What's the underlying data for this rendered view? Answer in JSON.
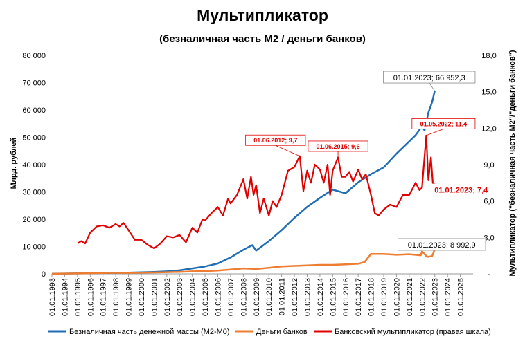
{
  "chart_data": {
    "type": "line",
    "title": "Мультипликатор",
    "subtitle": "(безналичная часть М2 / деньги банков)",
    "ylabel": "Млрд. рублей",
    "y2label": "Мультипликатор (\"безналичная часть М2\"/\"деньги банков\")",
    "ylim": [
      0,
      80000
    ],
    "y2lim": [
      0,
      18
    ],
    "xlim": [
      1993,
      2026
    ],
    "y_ticks": [
      "0",
      "10 000",
      "20 000",
      "30 000",
      "40 000",
      "50 000",
      "60 000",
      "70 000",
      "80 000"
    ],
    "y2_ticks": [
      "-",
      "3,0",
      "6,0",
      "9,0",
      "12,0",
      "15,0",
      "18,0"
    ],
    "x_ticks": [
      "01.01.1993",
      "01.01.1994",
      "01.01.1995",
      "01.01.1996",
      "01.01.1997",
      "01.01.1998",
      "01.01.1999",
      "01.01.2000",
      "01.01.2001",
      "01.01.2002",
      "01.01.2003",
      "01.01.2004",
      "01.01.2005",
      "01.01.2006",
      "01.01.2007",
      "01.01.2008",
      "01.01.2009",
      "01.01.2010",
      "01.01.2011",
      "01.01.2012",
      "01.01.2013",
      "01.01.2014",
      "01.01.2015",
      "01.01.2016",
      "01.01.2017",
      "01.01.2018",
      "01.01.2019",
      "01.01.2020",
      "01.01.2021",
      "01.01.2022",
      "01.01.2023",
      "01.01.2024",
      "01.01.2025"
    ],
    "series": [
      {
        "name": "Безналичная часть денежной массы (М2-М0)",
        "color": "#1f6eb4",
        "axis": "left",
        "x": [
          1993,
          1994,
          1995,
          1996,
          1997,
          1998,
          1999,
          2000,
          2001,
          2002,
          2003,
          2004,
          2005,
          2006,
          2007,
          2008,
          2008.7,
          2009,
          2010,
          2011,
          2012,
          2013,
          2014,
          2015,
          2016,
          2017,
          2018,
          2019,
          2020,
          2021,
          2021.5,
          2022,
          2022.2,
          2022.5,
          2022.8,
          2023
        ],
        "y": [
          50,
          100,
          150,
          200,
          300,
          400,
          450,
          550,
          700,
          900,
          1300,
          2000,
          2700,
          3800,
          6000,
          8800,
          10500,
          8500,
          12000,
          16000,
          20500,
          24500,
          27800,
          30800,
          29500,
          33500,
          36500,
          39000,
          44000,
          48500,
          50800,
          54000,
          52500,
          59000,
          63000,
          66952.3
        ]
      },
      {
        "name": "Деньги банков",
        "color": "#ed7d31",
        "axis": "left",
        "x": [
          1993,
          1995,
          1997,
          1998,
          1999,
          2000,
          2001,
          2002,
          2003,
          2004,
          2005,
          2006,
          2007,
          2008,
          2009,
          2010,
          2011,
          2012,
          2013,
          2014,
          2015,
          2016,
          2017,
          2017.5,
          2018,
          2019,
          2020,
          2021,
          2021.9,
          2022,
          2022.4,
          2022.8,
          2023
        ],
        "y": [
          20,
          150,
          300,
          400,
          350,
          450,
          500,
          600,
          700,
          900,
          1000,
          1200,
          1600,
          2000,
          1800,
          2200,
          2700,
          2900,
          3100,
          3300,
          3300,
          3500,
          3700,
          4300,
          7300,
          7300,
          7000,
          7200,
          6800,
          8200,
          6200,
          6500,
          8992.9
        ]
      },
      {
        "name": "Банковский мультипликатор (правая шкала)",
        "color": "#e00000",
        "axis": "right",
        "x": [
          1995,
          1995.3,
          1995.6,
          1996,
          1996.5,
          1997,
          1997.5,
          1998,
          1998.3,
          1998.6,
          1999,
          1999.5,
          2000,
          2000.5,
          2001,
          2001.5,
          2002,
          2002.5,
          2003,
          2003.5,
          2004,
          2004.4,
          2004.8,
          2005,
          2005.5,
          2006,
          2006.4,
          2006.8,
          2007,
          2007.5,
          2008,
          2008.3,
          2008.6,
          2008.8,
          2009,
          2009.3,
          2009.6,
          2010,
          2010.3,
          2010.6,
          2011,
          2011.5,
          2012,
          2012.42,
          2012.7,
          2013,
          2013.3,
          2013.6,
          2014,
          2014.3,
          2014.6,
          2014.8,
          2015,
          2015.42,
          2015.7,
          2016,
          2016.3,
          2016.6,
          2017,
          2017.3,
          2017.6,
          2018,
          2018.3,
          2018.6,
          2019,
          2019.5,
          2020,
          2020.5,
          2021,
          2021.5,
          2021.8,
          2022,
          2022.33,
          2022.5,
          2022.7,
          2022.85,
          2023
        ],
        "y": [
          2.5,
          2.7,
          2.5,
          3.4,
          3.9,
          4.0,
          3.8,
          4.1,
          3.9,
          4.2,
          3.6,
          2.8,
          2.8,
          2.4,
          2.1,
          2.5,
          3.1,
          3.0,
          3.2,
          2.6,
          3.8,
          3.4,
          4.5,
          4.4,
          5.0,
          5.5,
          4.8,
          6.2,
          5.8,
          6.5,
          7.8,
          6.2,
          8.0,
          6.5,
          7.3,
          5.0,
          6.2,
          4.8,
          6.0,
          5.5,
          6.5,
          8.5,
          8.8,
          9.7,
          6.8,
          8.5,
          7.5,
          9.0,
          8.6,
          7.5,
          9.0,
          6.5,
          8.5,
          9.6,
          8.0,
          8.0,
          8.4,
          7.6,
          8.6,
          7.8,
          8.2,
          6.5,
          5.0,
          4.8,
          5.3,
          5.7,
          5.5,
          6.5,
          6.5,
          7.5,
          6.9,
          7.1,
          11.4,
          7.7,
          9.6,
          7.4,
          7.4
        ]
      }
    ],
    "annotations": [
      {
        "text": "01.01.2023;  66 952,3",
        "x": 2023,
        "y": 66952.3,
        "axis": "left",
        "style": "black"
      },
      {
        "text": "01.01.2023;  8 992,9",
        "x": 2023,
        "y": 8992.9,
        "axis": "left",
        "style": "black"
      },
      {
        "text": "01.06.2012;  9,7",
        "x": 2012.42,
        "y": 9.7,
        "axis": "right",
        "style": "red-small"
      },
      {
        "text": "01.06.2015;  9,6",
        "x": 2015.42,
        "y": 9.6,
        "axis": "right",
        "style": "red-small"
      },
      {
        "text": "01.05.2022;  11,4",
        "x": 2022.33,
        "y": 11.4,
        "axis": "right",
        "style": "red-small"
      },
      {
        "text": "01.01.2023;  7,4",
        "x": 2023,
        "y": 7.4,
        "axis": "right",
        "style": "red-big"
      }
    ],
    "legend_position": "bottom",
    "grid": false
  }
}
